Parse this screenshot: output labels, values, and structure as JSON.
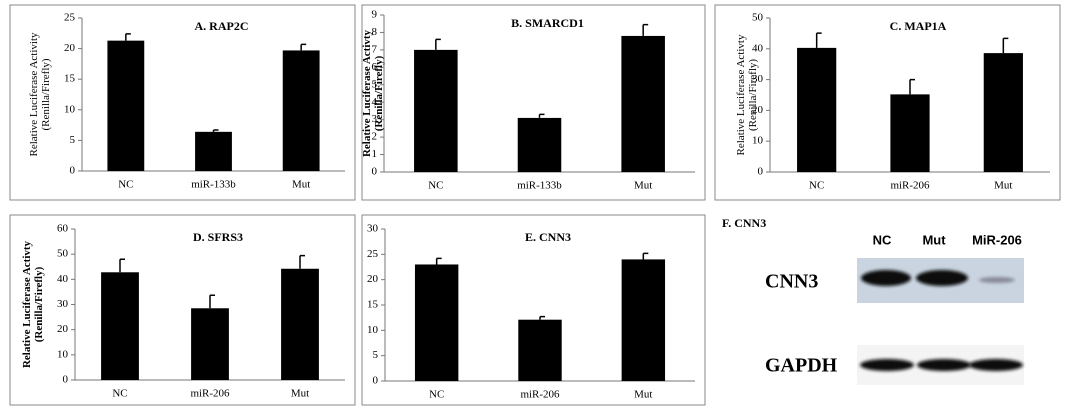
{
  "chart_data": [
    {
      "type": "bar",
      "title": "A.  RAP2C",
      "y_label": "Relative Luciferase Activity (Renilla/Firefly)",
      "categories": [
        "NC",
        "miR-133b",
        "Mut"
      ],
      "values": [
        21.3,
        6.4,
        19.7
      ],
      "errors": [
        1.1,
        0.3,
        1.0
      ],
      "color": "#000000",
      "ylim": [
        0,
        25
      ],
      "yticks": [
        0,
        5,
        10,
        15,
        20,
        25
      ]
    },
    {
      "type": "bar",
      "title": "B.  SMARCD1",
      "y_label": "Relative Luciferase Activty (Renilla/Firefly)",
      "categories": [
        "NC",
        "miR-133b",
        "Mut"
      ],
      "values": [
        7.0,
        3.1,
        7.8
      ],
      "errors": [
        0.6,
        0.2,
        0.65
      ],
      "color": "#000000",
      "ylim": [
        0,
        9
      ],
      "yticks": [
        0,
        1,
        2,
        3,
        4,
        5,
        6,
        7,
        8,
        9
      ]
    },
    {
      "type": "bar",
      "title": "C.  MAP1A",
      "y_label": "Relative Luciferase Activty (Renilla/Firefly)",
      "categories": [
        "NC",
        "miR-206",
        "Mut"
      ],
      "values": [
        40.3,
        25.2,
        38.6
      ],
      "errors": [
        4.8,
        4.8,
        4.8
      ],
      "color": "#000000",
      "ylim": [
        0,
        50
      ],
      "yticks": [
        0,
        10,
        20,
        30,
        40,
        50
      ]
    },
    {
      "type": "bar",
      "title": "D.  SFRS3",
      "y_label": "Relative Luciferase Activty (Renilla/Firefly)",
      "categories": [
        "NC",
        "miR-206",
        "Mut"
      ],
      "values": [
        42.8,
        28.5,
        44.2
      ],
      "errors": [
        5.2,
        5.2,
        5.2
      ],
      "color": "#000000",
      "ylim": [
        0,
        60
      ],
      "yticks": [
        0,
        10,
        20,
        30,
        40,
        50,
        60
      ]
    },
    {
      "type": "bar",
      "title": "E.  CNN3",
      "categories": [
        "NC",
        "miR-206",
        "Mut"
      ],
      "values": [
        23.0,
        12.1,
        24.0
      ],
      "errors": [
        1.2,
        0.6,
        1.2
      ],
      "color": "#000000",
      "ylim": [
        0,
        30
      ],
      "yticks": [
        0,
        5,
        10,
        15,
        20,
        25,
        30
      ]
    }
  ],
  "blot": {
    "title": "F.  CNN3",
    "lanes": [
      "NC",
      "Mut",
      "MiR-206"
    ],
    "rows": [
      "CNN3",
      "GAPDH"
    ]
  }
}
